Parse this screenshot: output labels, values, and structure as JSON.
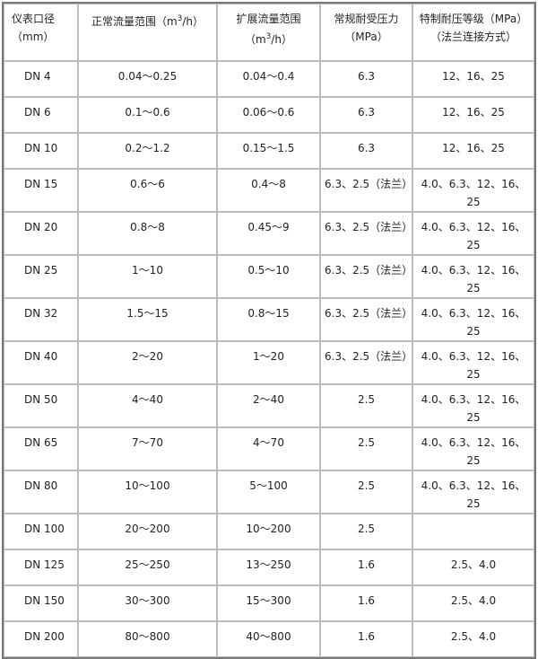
{
  "headers": [
    "仪表口径（mm）",
    "正常流量范围（m",
    "扩展流量范围（m",
    "常规耐受压力（MPa）",
    "特制耐压等级（MPa）（法兰连接方式）"
  ],
  "unit_sup": "3",
  "unit_tail": "/h）",
  "rows": [
    [
      "DN 4",
      "0.04～0.25",
      "0.04～0.4",
      "6.3",
      "12、16、25"
    ],
    [
      "DN 6",
      "0.1～0.6",
      "0.06～0.6",
      "6.3",
      "12、16、25"
    ],
    [
      "DN 10",
      "0.2～1.2",
      "0.15～1.5",
      "6.3",
      "12、16、25"
    ],
    [
      "DN 15",
      "0.6～6",
      "0.4～8",
      "6.3、2.5（法兰）",
      "4.0、6.3、12、16、25"
    ],
    [
      "DN 20",
      "0.8～8",
      "0.45～9",
      "6.3、2.5（法兰）",
      "4.0、6.3、12、16、25"
    ],
    [
      "DN 25",
      "1～10",
      "0.5～10",
      "6.3、2.5（法兰）",
      "4.0、6.3、12、16、25"
    ],
    [
      "DN 32",
      "1.5～15",
      "0.8～15",
      "6.3、2.5（法兰）",
      "4.0、6.3、12、16、25"
    ],
    [
      "DN 40",
      "2～20",
      "1～20",
      "6.3、2.5（法兰）",
      "4.0、6.3、12、16、25"
    ],
    [
      "DN 50",
      "4～40",
      "2～40",
      "2.5",
      "4.0、6.3、12、16、25"
    ],
    [
      "DN 65",
      "7～70",
      "4～70",
      "2.5",
      "4.0、6.3、12、16、25"
    ],
    [
      "DN 80",
      "10～100",
      "5～100",
      "2.5",
      "4.0、6.3、12、16、25"
    ],
    [
      "DN 100",
      "20～200",
      "10～200",
      "2.5",
      ""
    ],
    [
      "DN 125",
      "25～250",
      "13～250",
      "1.6",
      "2.5、4.0"
    ],
    [
      "DN 150",
      "30～300",
      "15～300",
      "1.6",
      "2.5、4.0"
    ],
    [
      "DN 200",
      "80～800",
      "40～800",
      "1.6",
      "2.5、4.0"
    ]
  ]
}
